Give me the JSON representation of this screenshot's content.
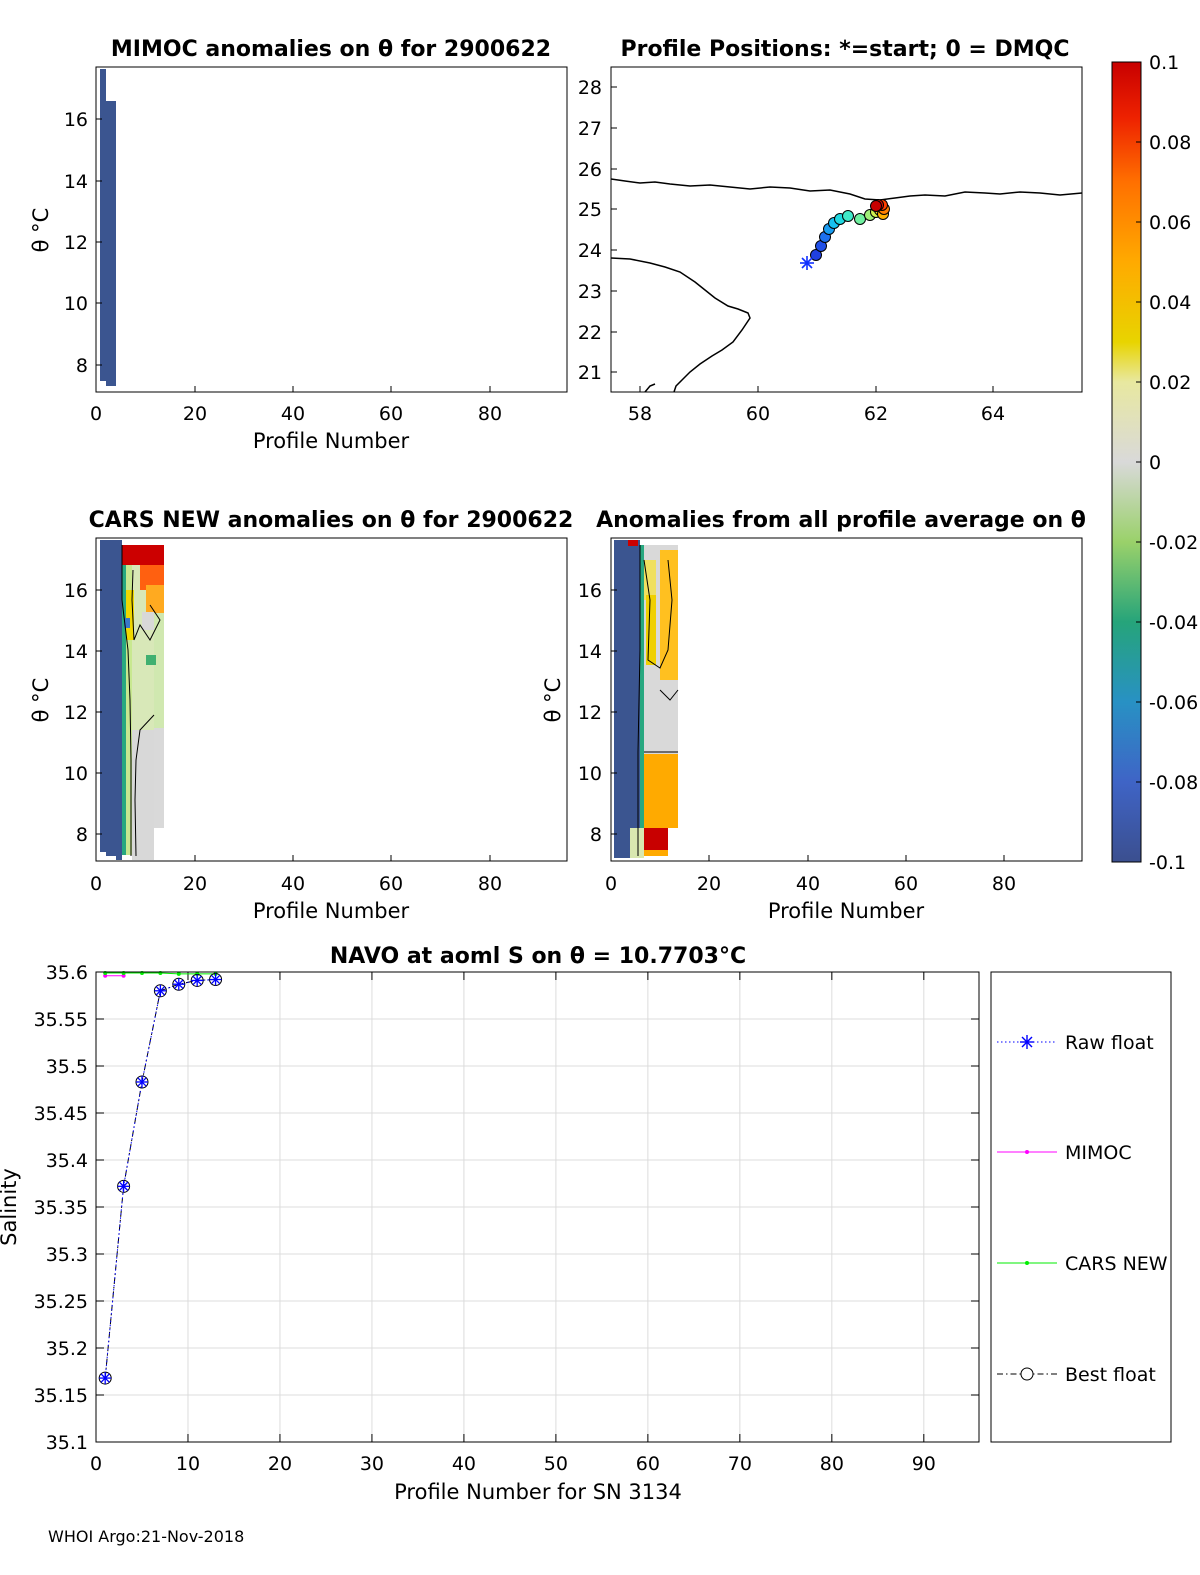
{
  "footer": "WHOI Argo:21-Nov-2018",
  "colorbar": {
    "ticks": [
      "0.1",
      "0.08",
      "0.06",
      "0.04",
      "0.02",
      "0",
      "-0.02",
      "-0.04",
      "-0.06",
      "-0.08",
      "-0.1"
    ],
    "range": [
      -0.1,
      0.1
    ]
  },
  "panel_mimoc": {
    "title": "MIMOC anomalies on θ  for 2900622",
    "xlabel": "Profile Number",
    "ylabel": "θ °C",
    "xticks": [
      "0",
      "20",
      "40",
      "60",
      "80"
    ],
    "yticks": [
      "16",
      "14",
      "12",
      "10",
      "8"
    ]
  },
  "panel_map": {
    "title": "Profile Positions: *=start; 0 = DMQC",
    "xticks": [
      "58",
      "60",
      "62",
      "64"
    ],
    "yticks": [
      "28",
      "27",
      "26",
      "25",
      "24",
      "23",
      "22",
      "21"
    ]
  },
  "panel_cars": {
    "title": "CARS NEW anomalies on θ for 2900622",
    "xlabel": "Profile Number",
    "ylabel": "θ °C",
    "xticks": [
      "0",
      "20",
      "40",
      "60",
      "80"
    ],
    "yticks": [
      "16",
      "14",
      "12",
      "10",
      "8"
    ]
  },
  "panel_avg": {
    "title": "Anomalies from all profile average on θ",
    "xlabel": "Profile Number",
    "ylabel": "θ °C",
    "xticks": [
      "0",
      "20",
      "40",
      "60",
      "80"
    ],
    "yticks": [
      "16",
      "14",
      "12",
      "10",
      "8"
    ]
  },
  "chart_data": {
    "type": "line",
    "title": "NAVO at aoml S on θ = 10.7703°C",
    "xlabel": "Profile Number for SN 3134",
    "ylabel": "Salinity",
    "xlim": [
      0,
      96
    ],
    "ylim": [
      35.1,
      35.6
    ],
    "xticks": [
      "0",
      "10",
      "20",
      "30",
      "40",
      "50",
      "60",
      "70",
      "80",
      "90"
    ],
    "yticks": [
      "35.6",
      "35.55",
      "35.5",
      "35.45",
      "35.4",
      "35.35",
      "35.3",
      "35.25",
      "35.2",
      "35.15",
      "35.1"
    ],
    "grid": true,
    "legend_position": "right",
    "series": [
      {
        "name": "Raw float",
        "color": "#0000ff",
        "x": [
          1,
          3,
          5,
          7,
          9,
          11,
          13
        ],
        "y": [
          35.168,
          35.372,
          35.483,
          35.58,
          35.587,
          35.591,
          35.592
        ]
      },
      {
        "name": "MIMOC",
        "color": "#ff00ff",
        "x": [
          1,
          3
        ],
        "y": [
          35.596,
          35.596
        ]
      },
      {
        "name": "CARS NEW",
        "color": "#00ee00",
        "x": [
          1,
          3,
          5,
          7,
          9,
          11,
          13
        ],
        "y": [
          35.599,
          35.599,
          35.599,
          35.599,
          35.598,
          35.598,
          35.598
        ]
      },
      {
        "name": "Best float",
        "color": "#000000",
        "x": [
          1,
          3,
          5,
          7,
          9,
          11,
          13
        ],
        "y": [
          35.168,
          35.372,
          35.483,
          35.58,
          35.587,
          35.591,
          35.592
        ]
      }
    ]
  }
}
